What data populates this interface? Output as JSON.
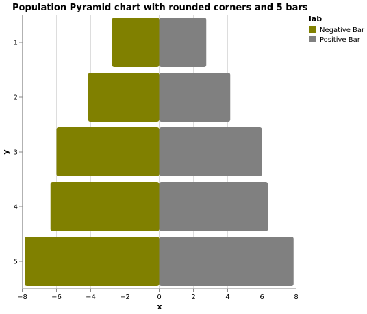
{
  "chart_data": {
    "type": "bar",
    "orientation": "horizontal",
    "title": "Population Pyramid chart with rounded corners and 5 bars",
    "xlabel": "x",
    "ylabel": "y",
    "categories": [
      "1",
      "2",
      "3",
      "4",
      "5"
    ],
    "xlim": [
      -8,
      8
    ],
    "x_ticks": [
      -8,
      -6,
      -4,
      -2,
      0,
      2,
      4,
      6,
      8
    ],
    "grid": true,
    "legend_title": "lab",
    "legend_position": "right",
    "series": [
      {
        "name": "Negative Bar",
        "color": "#808000",
        "values": [
          -2.75,
          -4.15,
          -6.0,
          -6.35,
          -7.85
        ]
      },
      {
        "name": "Positive Bar",
        "color": "#808080",
        "values": [
          2.75,
          4.15,
          6.0,
          6.35,
          7.85
        ]
      }
    ]
  }
}
